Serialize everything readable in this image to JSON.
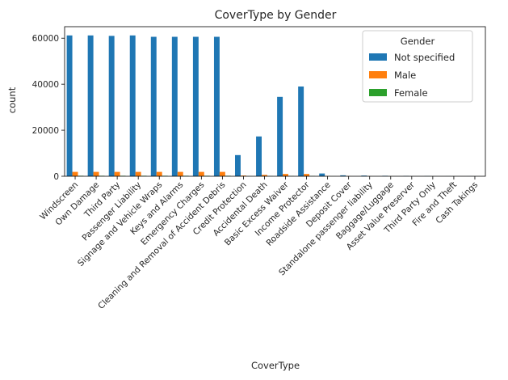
{
  "chart_data": {
    "type": "bar",
    "title": "CoverType by Gender",
    "xlabel": "CoverType",
    "ylabel": "count",
    "ylim": [
      0,
      65000
    ],
    "yticks": [
      0,
      20000,
      40000,
      60000
    ],
    "grid": false,
    "legend": {
      "title": "Gender",
      "placement": "top-right"
    },
    "categories": [
      "Windscreen",
      "Own Damage",
      "Third Party",
      "Passenger Liability",
      "Signage and Vehicle Wraps",
      "Keys and Alarms",
      "Emergency Charges",
      "Cleaning and Removal of Accident Debris",
      "Credit Protection",
      "Accidental Death",
      "Basic Excess Waiver",
      "Income Protector",
      "Roadside Assistance",
      "Deposit Cover",
      "Standalone passenger liability",
      "Baggage/Luggage",
      "Asset Value Preserver",
      "Third Party Only",
      "Fire and Theft",
      "Cash Takings"
    ],
    "series": [
      {
        "name": "Not specified",
        "color": "#1f77b4",
        "values": [
          61200,
          61200,
          61000,
          61200,
          60600,
          60600,
          60600,
          60600,
          9200,
          17300,
          34500,
          39000,
          1200,
          400,
          300,
          200,
          150,
          100,
          50,
          30
        ]
      },
      {
        "name": "Male",
        "color": "#ff7f0e",
        "values": [
          1900,
          1900,
          1900,
          1900,
          1900,
          1900,
          1900,
          1900,
          300,
          600,
          1000,
          1000,
          100,
          50,
          30,
          20,
          15,
          10,
          5,
          3
        ]
      },
      {
        "name": "Female",
        "color": "#2ca02c",
        "values": [
          200,
          200,
          200,
          200,
          200,
          200,
          200,
          200,
          50,
          80,
          100,
          100,
          20,
          10,
          5,
          5,
          3,
          2,
          1,
          1
        ]
      }
    ]
  }
}
